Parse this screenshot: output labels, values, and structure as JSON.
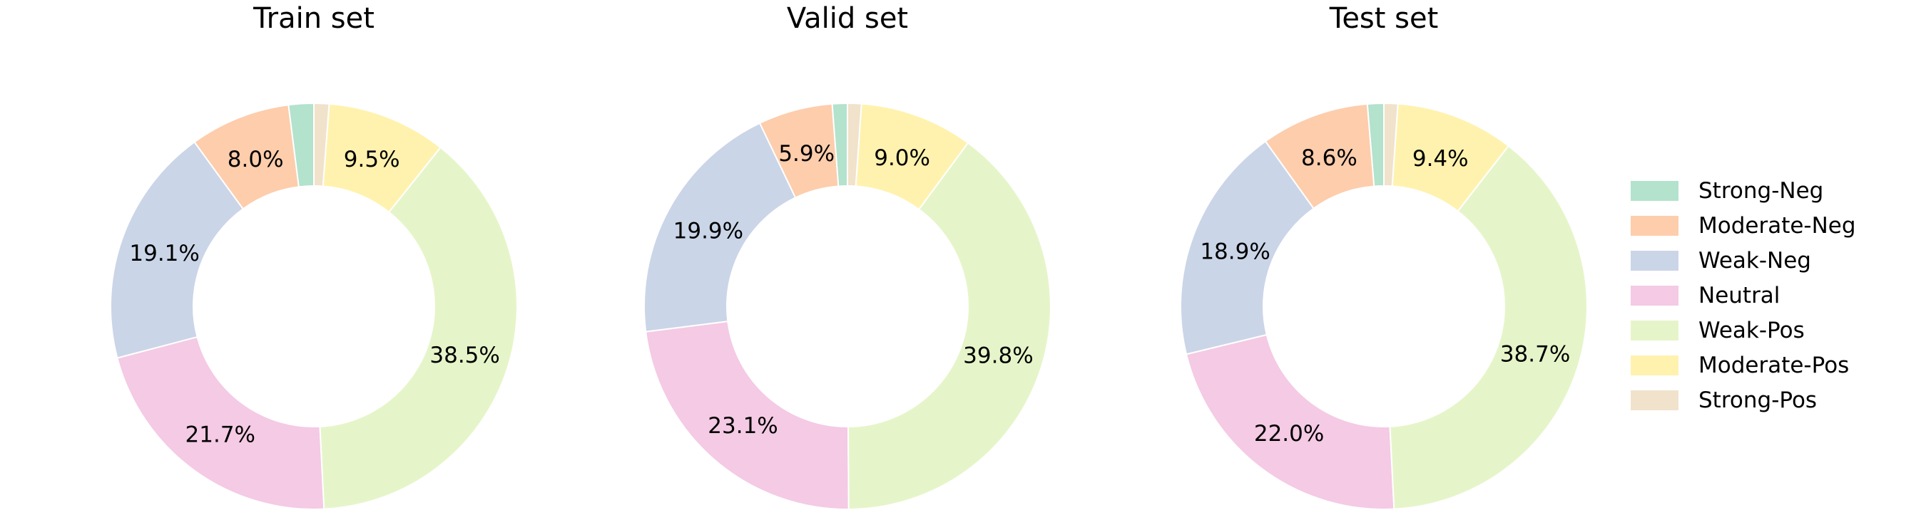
{
  "figure": {
    "background_color": "#ffffff",
    "text_color": "#000000"
  },
  "chart_data": {
    "type": "pie",
    "variant": "donut",
    "categories": [
      "Strong-Neg",
      "Moderate-Neg",
      "Weak-Neg",
      "Neutral",
      "Weak-Pos",
      "Moderate-Pos",
      "Strong-Pos"
    ],
    "colors": [
      "#b3e2cd",
      "#fdcdac",
      "#cbd5e8",
      "#f4cae4",
      "#e6f5c9",
      "#fff2ae",
      "#f1e2cc"
    ],
    "start_angle_deg": 90,
    "direction": "counterclockwise",
    "inner_radius_ratio": 0.593,
    "pct_label_radius_ratio": 0.78,
    "pct_label_min_value": 3.0,
    "legend_position": "center right",
    "charts": [
      {
        "title": "Train set",
        "values": [
          2.0,
          8.0,
          19.1,
          21.7,
          38.5,
          9.5,
          1.2
        ],
        "shown_pct_labels": [
          "8.0%",
          "19.1%",
          "21.7%",
          "38.5%",
          "9.5%"
        ],
        "note_unlabeled_slices": "Strong-Neg and Strong-Pos slices visible but too small for % labels (values estimated)"
      },
      {
        "title": "Valid set",
        "values": [
          1.2,
          5.9,
          19.9,
          23.1,
          39.8,
          9.0,
          1.1
        ],
        "shown_pct_labels": [
          "5.9%",
          "19.9%",
          "23.1%",
          "39.8%",
          "9.0%"
        ],
        "note_unlabeled_slices": "Strong-Neg and Strong-Pos slices visible but too small for % labels (values estimated)"
      },
      {
        "title": "Test set",
        "values": [
          1.3,
          8.6,
          18.9,
          22.0,
          38.7,
          9.4,
          1.1
        ],
        "shown_pct_labels": [
          "8.6%",
          "18.9%",
          "22.0%",
          "38.7%",
          "9.4%"
        ],
        "note_unlabeled_slices": "Strong-Neg and Strong-Pos slices visible but too small for % labels (values estimated)"
      }
    ]
  }
}
